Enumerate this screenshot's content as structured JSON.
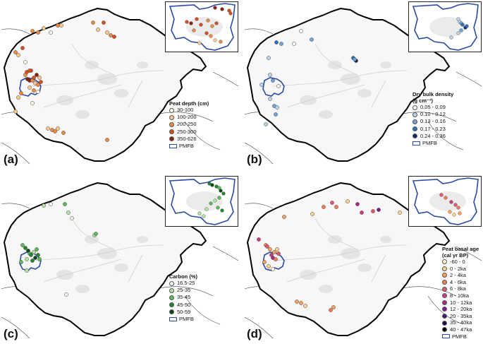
{
  "panels": [
    {
      "id": "a",
      "label": "(a)",
      "legend_title": "Peat depth (cm)",
      "classes": [
        {
          "label": "30-100",
          "color": "#fdf4ea"
        },
        {
          "label": "100-200",
          "color": "#fbc88e"
        },
        {
          "label": "200-250",
          "color": "#f08a3c"
        },
        {
          "label": "250-300",
          "color": "#d94e20"
        },
        {
          "label": "350-626",
          "color": "#8a1f0a"
        }
      ],
      "pmfb_label": "PMFB"
    },
    {
      "id": "b",
      "label": "(b)",
      "legend_title": "Dry bulk density",
      "legend_title_line2": "(g cm⁻³)",
      "classes": [
        {
          "label": "0.05 - 0.09",
          "color": "#f4f7fb"
        },
        {
          "label": "0.10 - 0.12",
          "color": "#bcd3ea"
        },
        {
          "label": "0.13 - 0.16",
          "color": "#6ea4d6"
        },
        {
          "label": "0.17 - 0.23",
          "color": "#2d70b5"
        },
        {
          "label": "0.24 - 0.36",
          "color": "#0b2a6b"
        }
      ],
      "pmfb_label": "PMFB"
    },
    {
      "id": "c",
      "label": "(c)",
      "legend_title": "Carbon (%)",
      "classes": [
        {
          "label": "16.5-25",
          "color": "#f1f9ee"
        },
        {
          "label": "25-35",
          "color": "#b4e2a4"
        },
        {
          "label": "35-45",
          "color": "#5dbb55"
        },
        {
          "label": "45-50",
          "color": "#22882e"
        },
        {
          "label": "50-59",
          "color": "#0a4a18"
        }
      ],
      "pmfb_label": "PMFB"
    },
    {
      "id": "d",
      "label": "(d)",
      "legend_title": "Peat basal age",
      "legend_title_line2": "(cal yr BP)",
      "classes": [
        {
          "label": "-60 - 0",
          "color": "#fff8d0"
        },
        {
          "label": "0 - 2ka",
          "color": "#fdd28a"
        },
        {
          "label": "2 - 4ka",
          "color": "#fba15c"
        },
        {
          "label": "4 - 6ka",
          "color": "#f47a5a"
        },
        {
          "label": "6 - 8ka",
          "color": "#e5566d"
        },
        {
          "label": "8 - 10ka",
          "color": "#cd3a7e"
        },
        {
          "label": "10 - 12ka",
          "color": "#a92689"
        },
        {
          "label": "12 - 20ka",
          "color": "#7e1a8a"
        },
        {
          "label": "20 - 35ka",
          "color": "#4e1277"
        },
        {
          "label": "35 - 40ka",
          "color": "#260a4e"
        },
        {
          "label": "40 - 47ka",
          "color": "#000000"
        }
      ],
      "pmfb_label": "PMFB"
    }
  ],
  "pmfb_color": "#2a4aa6",
  "basin_outline_color": "#000000"
}
